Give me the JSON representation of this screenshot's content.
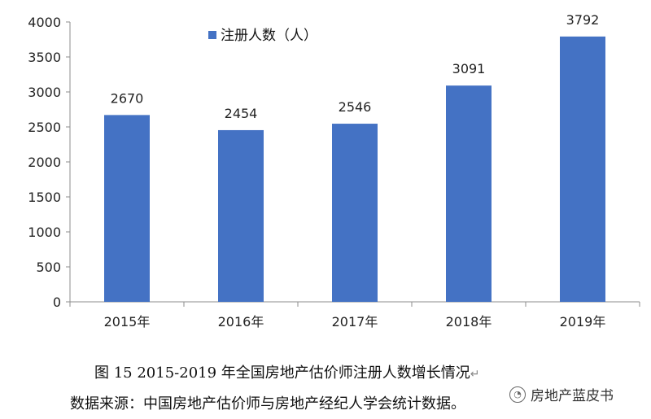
{
  "chart_data": {
    "type": "bar",
    "categories": [
      "2015年",
      "2016年",
      "2017年",
      "2018年",
      "2019年"
    ],
    "series": [
      {
        "name": "注册人数（人）",
        "values": [
          2670,
          2454,
          2546,
          3091,
          3792
        ]
      }
    ],
    "data_labels": [
      "2670",
      "2454",
      "2546",
      "3091",
      "3792"
    ],
    "ylim": [
      0,
      4000
    ],
    "yticks": [
      0,
      500,
      1000,
      1500,
      2000,
      2500,
      3000,
      3500,
      4000
    ],
    "grid": false,
    "legend": "top-left",
    "bar_color": "#4472C4"
  },
  "caption": {
    "text": "图 15 2015-2019 年全国房地产估价师注册人数增长情况",
    "return_mark": "↵"
  },
  "source": {
    "text": "数据来源：中国房地产估价师与房地产经纪人学会统计数据。"
  },
  "watermark": {
    "icon": "wechat-icon",
    "text": "房地产蓝皮书"
  }
}
